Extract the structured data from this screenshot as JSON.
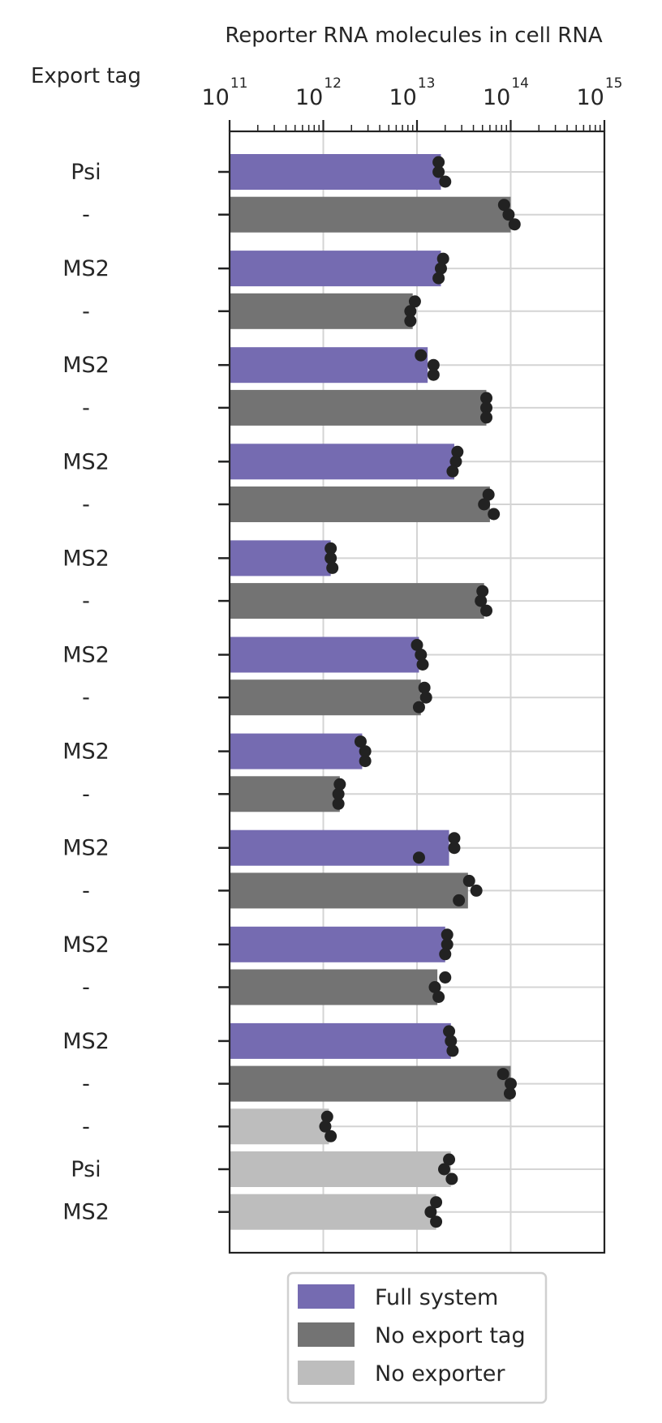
{
  "chart_data": {
    "type": "bar",
    "orientation": "horizontal",
    "scale": "log",
    "xlabel": "Reporter RNA molecules in cell RNA",
    "ylabel": "Export tag",
    "xlim": [
      100000000000.0,
      1000000000000000.0
    ],
    "x_ticks": [
      {
        "base": "10",
        "exp": "11"
      },
      {
        "base": "10",
        "exp": "12"
      },
      {
        "base": "10",
        "exp": "13"
      },
      {
        "base": "10",
        "exp": "14"
      },
      {
        "base": "10",
        "exp": "15"
      }
    ],
    "grid": true,
    "legend_position": "bottom",
    "colors": {
      "Full system": "#756bb1",
      "No export tag": "#737373",
      "No exporter": "#bdbdbd",
      "points": "#222222",
      "grid": "#d4d4d4",
      "axis": "#222222"
    },
    "series": [
      {
        "name": "Full system"
      },
      {
        "name": "No export tag"
      },
      {
        "name": "No exporter"
      }
    ],
    "rows": [
      {
        "label": "Psi",
        "series": "Full system",
        "value": 18000000000000.0,
        "points": [
          17000000000000.0,
          17000000000000.0,
          20000000000000.0
        ]
      },
      {
        "label": "-",
        "series": "No export tag",
        "value": 100000000000000.0,
        "points": [
          85000000000000.0,
          95000000000000.0,
          110000000000000.0
        ]
      },
      {
        "label": "MS2",
        "series": "Full system",
        "value": 18000000000000.0,
        "points": [
          19000000000000.0,
          18000000000000.0,
          17000000000000.0
        ]
      },
      {
        "label": "-",
        "series": "No export tag",
        "value": 9000000000000.0,
        "points": [
          9500000000000.0,
          8500000000000.0,
          8500000000000.0
        ]
      },
      {
        "label": "MS2",
        "series": "Full system",
        "value": 13000000000000.0,
        "points": [
          11000000000000.0,
          15000000000000.0,
          15000000000000.0
        ]
      },
      {
        "label": "-",
        "series": "No export tag",
        "value": 55000000000000.0,
        "points": [
          55000000000000.0,
          55000000000000.0,
          55000000000000.0
        ]
      },
      {
        "label": "MS2",
        "series": "Full system",
        "value": 25000000000000.0,
        "points": [
          27000000000000.0,
          26000000000000.0,
          24000000000000.0
        ]
      },
      {
        "label": "-",
        "series": "No export tag",
        "value": 60000000000000.0,
        "points": [
          58000000000000.0,
          52000000000000.0,
          66000000000000.0
        ]
      },
      {
        "label": "MS2",
        "series": "Full system",
        "value": 1200000000000.0,
        "points": [
          1200000000000.0,
          1200000000000.0,
          1250000000000.0
        ]
      },
      {
        "label": "-",
        "series": "No export tag",
        "value": 52000000000000.0,
        "points": [
          50000000000000.0,
          48000000000000.0,
          55000000000000.0
        ]
      },
      {
        "label": "MS2",
        "series": "Full system",
        "value": 10500000000000.0,
        "points": [
          10000000000000.0,
          11000000000000.0,
          11500000000000.0
        ]
      },
      {
        "label": "-",
        "series": "No export tag",
        "value": 11000000000000.0,
        "points": [
          12000000000000.0,
          12500000000000.0,
          10500000000000.0
        ]
      },
      {
        "label": "MS2",
        "series": "Full system",
        "value": 2600000000000.0,
        "points": [
          2500000000000.0,
          2800000000000.0,
          2800000000000.0
        ]
      },
      {
        "label": "-",
        "series": "No export tag",
        "value": 1500000000000.0,
        "points": [
          1500000000000.0,
          1450000000000.0,
          1450000000000.0
        ]
      },
      {
        "label": "MS2",
        "series": "Full system",
        "value": 22000000000000.0,
        "points": [
          25000000000000.0,
          25000000000000.0,
          10500000000000.0
        ]
      },
      {
        "label": "-",
        "series": "No export tag",
        "value": 35000000000000.0,
        "points": [
          36000000000000.0,
          43000000000000.0,
          28000000000000.0
        ]
      },
      {
        "label": "MS2",
        "series": "Full system",
        "value": 20000000000000.0,
        "points": [
          21000000000000.0,
          21000000000000.0,
          20000000000000.0
        ]
      },
      {
        "label": "-",
        "series": "No export tag",
        "value": 16500000000000.0,
        "points": [
          20000000000000.0,
          15500000000000.0,
          17000000000000.0
        ]
      },
      {
        "label": "MS2",
        "series": "Full system",
        "value": 23000000000000.0,
        "points": [
          22000000000000.0,
          23000000000000.0,
          24000000000000.0
        ]
      },
      {
        "label": "-",
        "series": "No export tag",
        "value": 100000000000000.0,
        "points": [
          83000000000000.0,
          100000000000000.0,
          98000000000000.0
        ]
      },
      {
        "label": "-",
        "series": "No exporter",
        "value": 1150000000000.0,
        "points": [
          1100000000000.0,
          1050000000000.0,
          1200000000000.0
        ]
      },
      {
        "label": "Psi",
        "series": "No exporter",
        "value": 23000000000000.0,
        "points": [
          22000000000000.0,
          19500000000000.0,
          23500000000000.0
        ]
      },
      {
        "label": "MS2",
        "series": "No exporter",
        "value": 16000000000000.0,
        "points": [
          16000000000000.0,
          14000000000000.0,
          16000000000000.0
        ]
      }
    ]
  }
}
